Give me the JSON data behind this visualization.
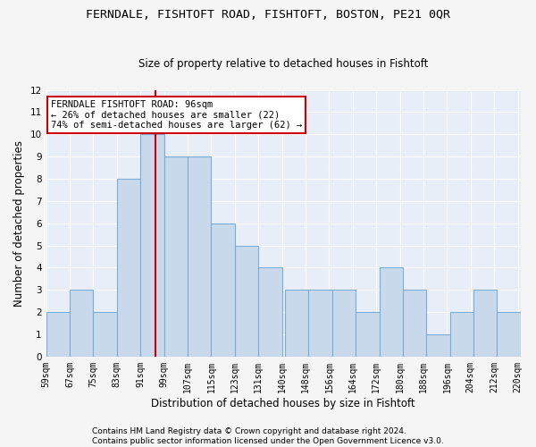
{
  "title": "FERNDALE, FISHTOFT ROAD, FISHTOFT, BOSTON, PE21 0QR",
  "subtitle": "Size of property relative to detached houses in Fishtoft",
  "xlabel": "Distribution of detached houses by size in Fishtoft",
  "ylabel": "Number of detached properties",
  "bar_color": "#c9d9ec",
  "bar_edge_color": "#7aaed4",
  "bar_left_edges": [
    59,
    67,
    75,
    83,
    91,
    99,
    107,
    115,
    123,
    131,
    140,
    148,
    156,
    164,
    172,
    180,
    188,
    196,
    204,
    212
  ],
  "bar_heights": [
    2,
    3,
    2,
    8,
    10,
    9,
    9,
    6,
    5,
    4,
    3,
    3,
    3,
    2,
    4,
    3,
    1,
    2,
    3,
    2
  ],
  "bin_width": 8,
  "tick_labels": [
    "59sqm",
    "67sqm",
    "75sqm",
    "83sqm",
    "91sqm",
    "99sqm",
    "107sqm",
    "115sqm",
    "123sqm",
    "131sqm",
    "140sqm",
    "148sqm",
    "156sqm",
    "164sqm",
    "172sqm",
    "180sqm",
    "188sqm",
    "196sqm",
    "204sqm",
    "212sqm",
    "220sqm"
  ],
  "vline_x": 96,
  "vline_color": "#cc0000",
  "ylim": [
    0,
    12
  ],
  "yticks": [
    0,
    1,
    2,
    3,
    4,
    5,
    6,
    7,
    8,
    9,
    10,
    11,
    12
  ],
  "annotation_box_text": "FERNDALE FISHTOFT ROAD: 96sqm\n← 26% of detached houses are smaller (22)\n74% of semi-detached houses are larger (62) →",
  "footer_line1": "Contains HM Land Registry data © Crown copyright and database right 2024.",
  "footer_line2": "Contains public sector information licensed under the Open Government Licence v3.0.",
  "plot_bg_color": "#e8eef8",
  "fig_bg_color": "#f5f5f5",
  "grid_color": "#ffffff",
  "title_fontsize": 9.5,
  "subtitle_fontsize": 8.5,
  "xlabel_fontsize": 8.5,
  "ylabel_fontsize": 8.5,
  "annotation_fontsize": 7.5,
  "footer_fontsize": 6.5,
  "tick_fontsize": 7.0
}
